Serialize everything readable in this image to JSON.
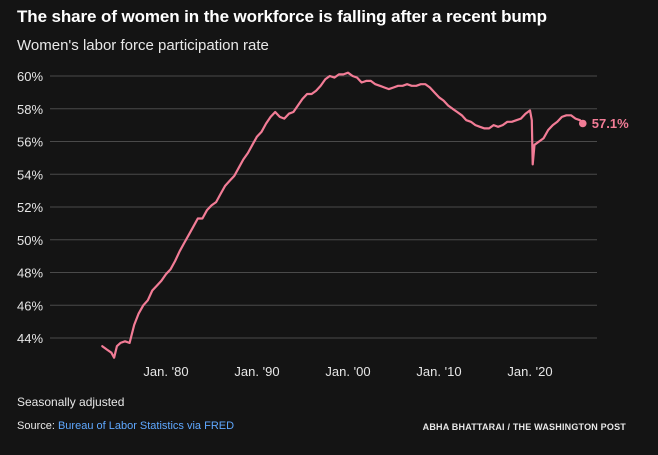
{
  "title": "The share of women in the workforce is falling after a recent bump",
  "subtitle": "Women's labor force participation rate",
  "note": "Seasonally adjusted",
  "source": {
    "prefix": "Source: ",
    "link_text": "Bureau of Labor Statistics via FRED"
  },
  "credit": "ABHA BHATTARAI / THE WASHINGTON POST",
  "colors": {
    "line": "#f27c96",
    "grid": "#4a4a4a",
    "background": "#141414",
    "text": "#ffffff",
    "link": "#5fa8ff"
  },
  "chart_data": {
    "type": "line",
    "title": "Women's labor force participation rate",
    "ylabel": "",
    "xlabel": "",
    "ylim": [
      43,
      60.5
    ],
    "xlim": [
      1972.5,
      2026.5
    ],
    "y_ticks": [
      44,
      46,
      48,
      50,
      52,
      54,
      56,
      58,
      60
    ],
    "y_tick_labels": [
      "44%",
      "46%",
      "48%",
      "50%",
      "52%",
      "54%",
      "56%",
      "58%",
      "60%"
    ],
    "x_ticks": [
      1980,
      1990,
      2000,
      2010,
      2020
    ],
    "x_tick_labels": [
      "Jan. '80",
      "Jan. '90",
      "Jan. '00",
      "Jan. '10",
      "Jan. '20"
    ],
    "grid": true,
    "end_label": "57.1%",
    "series": [
      {
        "values_pct_points": [
          [
            1973.0,
            43.5
          ],
          [
            1973.5,
            43.3
          ],
          [
            1974.0,
            43.1
          ],
          [
            1974.3,
            42.8
          ],
          [
            1974.6,
            43.5
          ],
          [
            1975.0,
            43.7
          ],
          [
            1975.5,
            43.8
          ],
          [
            1976.0,
            43.7
          ],
          [
            1976.5,
            44.8
          ],
          [
            1977.0,
            45.5
          ],
          [
            1977.5,
            46.0
          ],
          [
            1978.0,
            46.3
          ],
          [
            1978.5,
            46.9
          ],
          [
            1979.0,
            47.2
          ],
          [
            1979.5,
            47.5
          ],
          [
            1980.0,
            47.9
          ],
          [
            1980.5,
            48.2
          ],
          [
            1981.0,
            48.7
          ],
          [
            1981.5,
            49.3
          ],
          [
            1982.0,
            49.8
          ],
          [
            1982.5,
            50.3
          ],
          [
            1983.0,
            50.8
          ],
          [
            1983.5,
            51.3
          ],
          [
            1984.0,
            51.3
          ],
          [
            1984.5,
            51.8
          ],
          [
            1985.0,
            52.1
          ],
          [
            1985.5,
            52.3
          ],
          [
            1986.0,
            52.8
          ],
          [
            1986.5,
            53.3
          ],
          [
            1987.0,
            53.6
          ],
          [
            1987.5,
            53.9
          ],
          [
            1988.0,
            54.4
          ],
          [
            1988.5,
            54.9
          ],
          [
            1989.0,
            55.3
          ],
          [
            1989.5,
            55.8
          ],
          [
            1990.0,
            56.3
          ],
          [
            1990.5,
            56.6
          ],
          [
            1991.0,
            57.1
          ],
          [
            1991.5,
            57.5
          ],
          [
            1992.0,
            57.8
          ],
          [
            1992.5,
            57.5
          ],
          [
            1993.0,
            57.4
          ],
          [
            1993.5,
            57.7
          ],
          [
            1994.0,
            57.8
          ],
          [
            1994.5,
            58.2
          ],
          [
            1995.0,
            58.6
          ],
          [
            1995.5,
            58.9
          ],
          [
            1996.0,
            58.9
          ],
          [
            1996.5,
            59.1
          ],
          [
            1997.0,
            59.4
          ],
          [
            1997.5,
            59.8
          ],
          [
            1998.0,
            60.0
          ],
          [
            1998.5,
            59.9
          ],
          [
            1999.0,
            60.1
          ],
          [
            1999.5,
            60.1
          ],
          [
            2000.0,
            60.2
          ],
          [
            2000.5,
            60.0
          ],
          [
            2001.0,
            59.9
          ],
          [
            2001.5,
            59.6
          ],
          [
            2002.0,
            59.7
          ],
          [
            2002.5,
            59.7
          ],
          [
            2003.0,
            59.5
          ],
          [
            2003.5,
            59.4
          ],
          [
            2004.0,
            59.3
          ],
          [
            2004.5,
            59.2
          ],
          [
            2005.0,
            59.3
          ],
          [
            2005.5,
            59.4
          ],
          [
            2006.0,
            59.4
          ],
          [
            2006.5,
            59.5
          ],
          [
            2007.0,
            59.4
          ],
          [
            2007.5,
            59.4
          ],
          [
            2008.0,
            59.5
          ],
          [
            2008.5,
            59.5
          ],
          [
            2009.0,
            59.3
          ],
          [
            2009.5,
            59.0
          ],
          [
            2010.0,
            58.7
          ],
          [
            2010.5,
            58.5
          ],
          [
            2011.0,
            58.2
          ],
          [
            2011.5,
            58.0
          ],
          [
            2012.0,
            57.8
          ],
          [
            2012.5,
            57.6
          ],
          [
            2013.0,
            57.3
          ],
          [
            2013.5,
            57.2
          ],
          [
            2014.0,
            57.0
          ],
          [
            2014.5,
            56.9
          ],
          [
            2015.0,
            56.8
          ],
          [
            2015.5,
            56.8
          ],
          [
            2016.0,
            57.0
          ],
          [
            2016.5,
            56.9
          ],
          [
            2017.0,
            57.0
          ],
          [
            2017.5,
            57.2
          ],
          [
            2018.0,
            57.2
          ],
          [
            2018.5,
            57.3
          ],
          [
            2019.0,
            57.4
          ],
          [
            2019.5,
            57.7
          ],
          [
            2020.0,
            57.9
          ],
          [
            2020.2,
            57.3
          ],
          [
            2020.3,
            54.6
          ],
          [
            2020.5,
            55.8
          ],
          [
            2021.0,
            56.0
          ],
          [
            2021.5,
            56.2
          ],
          [
            2022.0,
            56.7
          ],
          [
            2022.5,
            57.0
          ],
          [
            2023.0,
            57.2
          ],
          [
            2023.5,
            57.5
          ],
          [
            2024.0,
            57.6
          ],
          [
            2024.5,
            57.6
          ],
          [
            2025.0,
            57.4
          ],
          [
            2025.5,
            57.3
          ],
          [
            2025.8,
            57.1
          ]
        ]
      }
    ]
  }
}
